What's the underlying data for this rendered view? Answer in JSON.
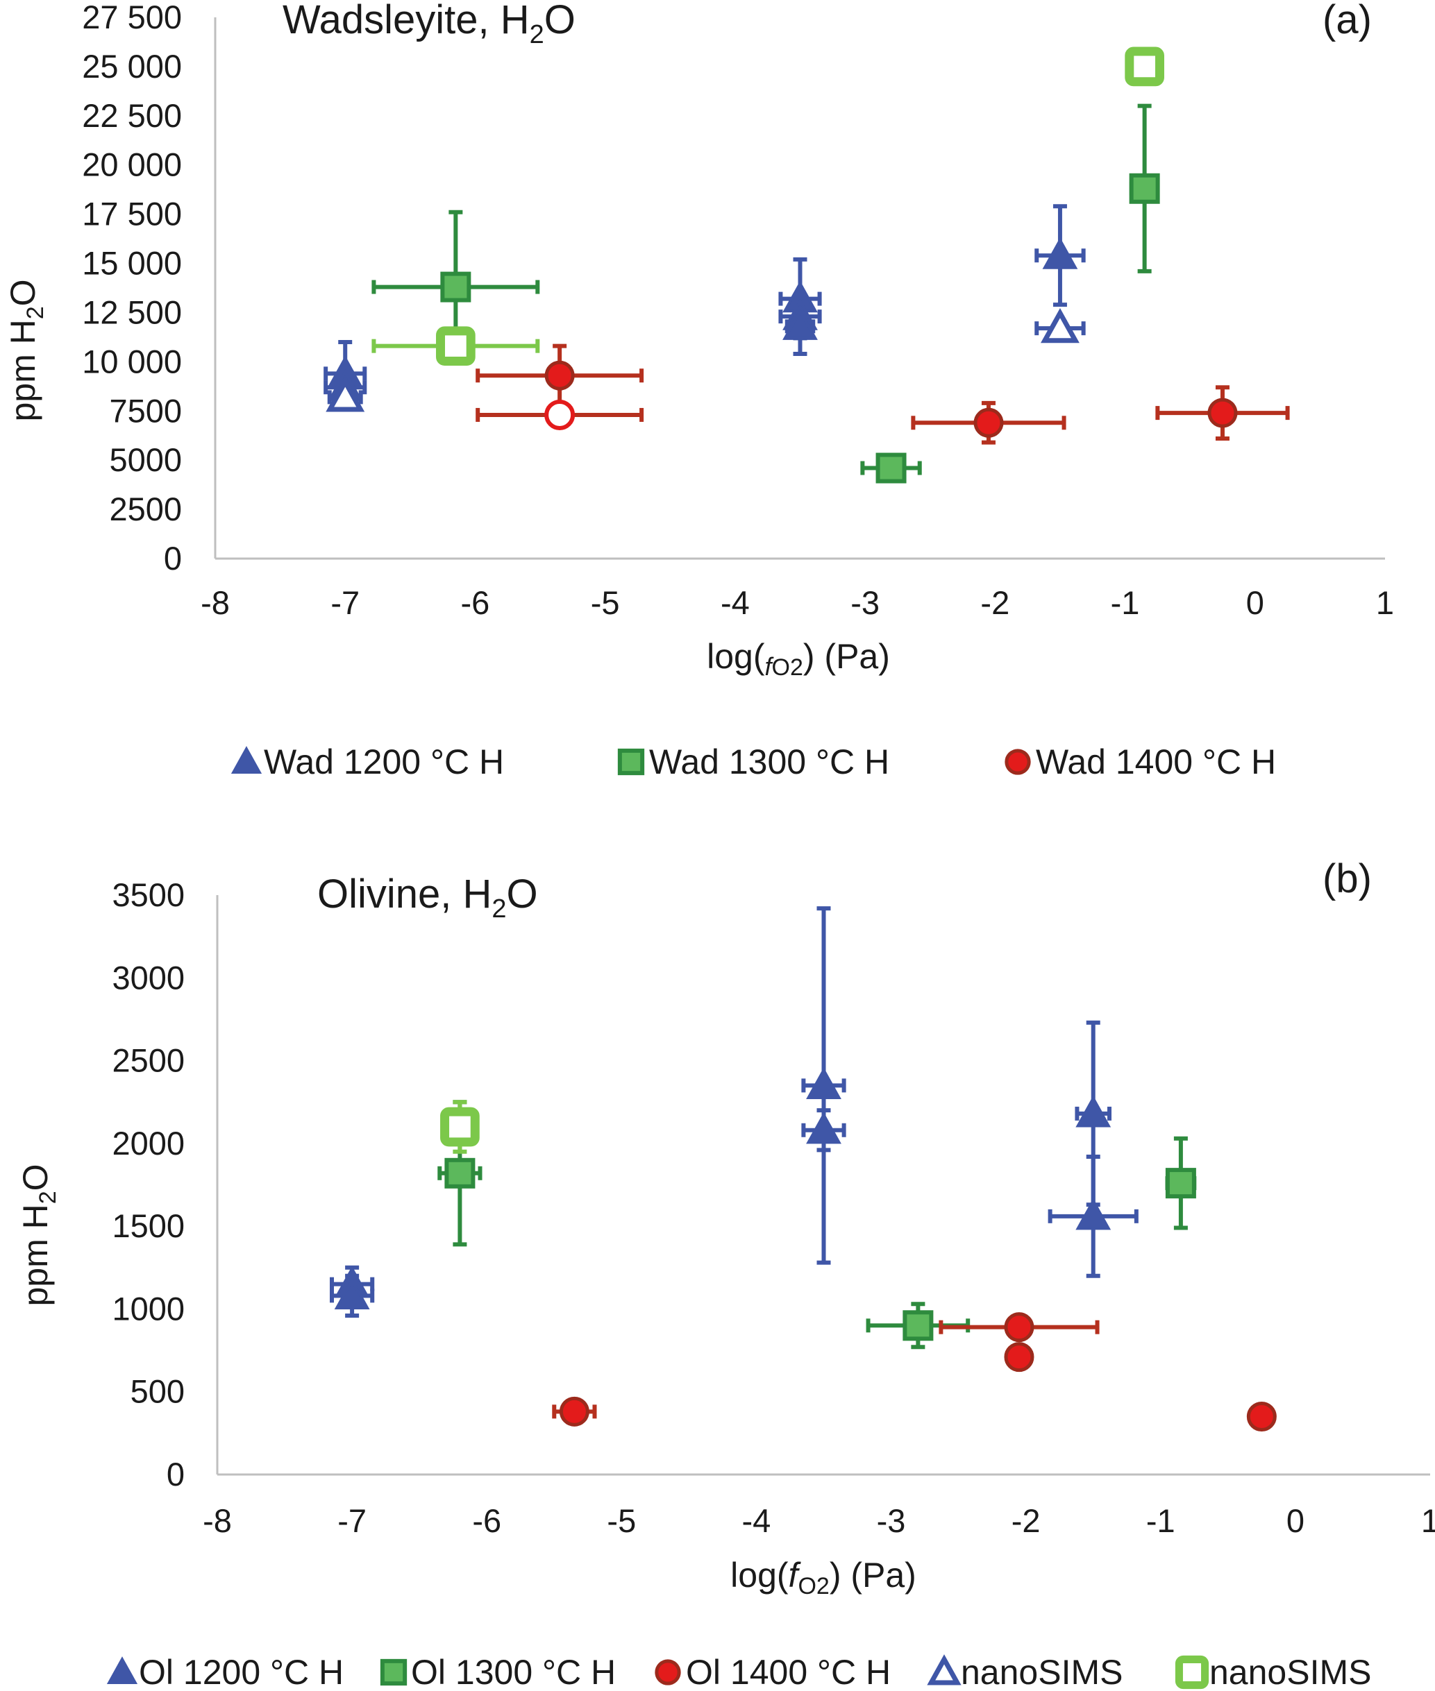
{
  "colors": {
    "blue": "#3f56a7",
    "green_dark": "#2e8b3e",
    "green_fill": "#5cb85c",
    "green_light": "#7cc84a",
    "red": "#e31b1b",
    "red_edge": "#9c2a1c",
    "red_line": "#b5301e",
    "axis": "#bfbfbf",
    "text": "#1a1a1a"
  },
  "chart_data": [
    {
      "type": "scatter",
      "panel_label": "(a)",
      "title_main": "Wadsleyite, H",
      "title_sub": "2",
      "title_end": "O",
      "ylabel_main": "ppm H",
      "ylabel_sub": "2",
      "ylabel_end": "O",
      "xlabel_pre": "log(",
      "xlabel_f": "f",
      "xlabel_sub": "O2",
      "xlabel_post": ") (Pa)",
      "xlim": [
        -8,
        1
      ],
      "ylim": [
        0,
        27500
      ],
      "x_ticks": [
        "-8",
        "-7",
        "-6",
        "-5",
        "-4",
        "-3",
        "-2",
        "-1",
        "0",
        "1"
      ],
      "y_ticks": [
        "0",
        "2500",
        "5000",
        "7500",
        "10 000",
        "12 500",
        "15 000",
        "17 500",
        "20 000",
        "22 500",
        "25 000",
        "27 500"
      ],
      "legend": [
        {
          "marker": "triangle",
          "label": "Wad 1200 °C H"
        },
        {
          "marker": "square",
          "label": "Wad 1300 °C H"
        },
        {
          "marker": "circle",
          "label": "Wad 1400 °C H"
        }
      ],
      "series": [
        {
          "name": "Wad 1200 °C H",
          "marker": "triangle",
          "filled": true,
          "points": [
            {
              "x": -7.0,
              "y": 9400,
              "xerr": 0.15,
              "yerr": 1600
            },
            {
              "x": -7.0,
              "y": 8700,
              "xerr": 0.15,
              "yerr": 500
            },
            {
              "x": -3.5,
              "y": 13200,
              "xerr": 0.15,
              "yerr": 2000
            },
            {
              "x": -3.5,
              "y": 12300,
              "xerr": 0.15,
              "yerr": 700
            },
            {
              "x": -3.5,
              "y": 11800,
              "xerr": 0.1,
              "yerr": 1400
            },
            {
              "x": -1.5,
              "y": 15400,
              "xerr": 0.18,
              "yerr": 2500
            }
          ]
        },
        {
          "name": "Wad 1200 °C H nanoSIMS",
          "marker": "triangle",
          "filled": false,
          "points": [
            {
              "x": -7.0,
              "y": 8200,
              "xerr": 0.12,
              "yerr": 300
            },
            {
              "x": -1.5,
              "y": 11700,
              "xerr": 0.18,
              "yerr": 300
            }
          ]
        },
        {
          "name": "Wad 1300 °C H",
          "marker": "square",
          "filled": true,
          "points": [
            {
              "x": -6.15,
              "y": 13800,
              "xerr": 0.63,
              "yerr": 3800
            },
            {
              "x": -2.8,
              "y": 4600,
              "xerr": 0.22,
              "yerr": 400
            },
            {
              "x": -0.85,
              "y": 18800,
              "xerr": 0.1,
              "yerr": 4200
            }
          ]
        },
        {
          "name": "Wad 1300 °C H nanoSIMS",
          "marker": "square",
          "filled": false,
          "points": [
            {
              "x": -6.15,
              "y": 10800,
              "xerr": 0.63,
              "yerr": 0
            },
            {
              "x": -0.85,
              "y": 25000,
              "xerr": 0,
              "yerr": 0
            }
          ]
        },
        {
          "name": "Wad 1400 °C H",
          "marker": "circle",
          "filled": true,
          "points": [
            {
              "x": -5.35,
              "y": 9300,
              "xerr": 0.63,
              "yerr": 1500
            },
            {
              "x": -2.05,
              "y": 6900,
              "xerr": 0.58,
              "yerr": 1000
            },
            {
              "x": -0.25,
              "y": 7400,
              "xerr": 0.5,
              "yerr": 1300
            }
          ]
        },
        {
          "name": "Wad 1400 °C H nanoSIMS",
          "marker": "circle",
          "filled": false,
          "points": [
            {
              "x": -5.35,
              "y": 7300,
              "xerr": 0.63,
              "yerr": 0
            }
          ]
        }
      ]
    },
    {
      "type": "scatter",
      "panel_label": "(b)",
      "title_main": "Olivine, H",
      "title_sub": "2",
      "title_end": "O",
      "ylabel_main": "ppm H",
      "ylabel_sub": "2",
      "ylabel_end": "O",
      "xlabel_pre": "log(",
      "xlabel_f": "f",
      "xlabel_sub": "O2",
      "xlabel_post": ") (Pa)",
      "xlim": [
        -8,
        1
      ],
      "ylim": [
        0,
        3500
      ],
      "x_ticks": [
        "-8",
        "-7",
        "-6",
        "-5",
        "-4",
        "-3",
        "-2",
        "-1",
        "0",
        "1"
      ],
      "y_ticks": [
        "0",
        "500",
        "1000",
        "1500",
        "2000",
        "2500",
        "3000",
        "3500"
      ],
      "legend": [
        {
          "marker": "triangle",
          "filled": true,
          "label": "Ol 1200 °C H"
        },
        {
          "marker": "square",
          "filled": true,
          "label": "Ol 1300 °C H"
        },
        {
          "marker": "circle",
          "filled": true,
          "label": "Ol 1400 °C H"
        },
        {
          "marker": "triangle",
          "filled": false,
          "label": "nanoSIMS"
        },
        {
          "marker": "square",
          "filled": false,
          "label": "nanoSIMS"
        }
      ],
      "series": [
        {
          "name": "Ol 1200 °C H",
          "marker": "triangle",
          "filled": true,
          "points": [
            {
              "x": -7.0,
              "y": 1150,
              "xerr": 0.15,
              "yerr": 100
            },
            {
              "x": -7.0,
              "y": 1080,
              "xerr": 0.15,
              "yerr": 120
            },
            {
              "x": -3.5,
              "y": 2350,
              "xerr": 0.15,
              "yerr": 1070
            },
            {
              "x": -3.5,
              "y": 2080,
              "xerr": 0.15,
              "yerr": 120
            },
            {
              "x": -1.5,
              "y": 2180,
              "xerr": 0.12,
              "yerr": 550
            },
            {
              "x": -1.5,
              "y": 1560,
              "xerr": 0.32,
              "yerr": 360
            }
          ]
        },
        {
          "name": "Ol 1300 °C H",
          "marker": "square",
          "filled": true,
          "points": [
            {
              "x": -6.2,
              "y": 1820,
              "xerr": 0.15,
              "yerr": 430
            },
            {
              "x": -2.8,
              "y": 900,
              "xerr": 0.37,
              "yerr": 130
            },
            {
              "x": -0.85,
              "y": 1760,
              "xerr": 0.1,
              "yerr": 270
            }
          ]
        },
        {
          "name": "Ol 1300 °C H nanoSIMS",
          "marker": "square",
          "filled": false,
          "points": [
            {
              "x": -6.2,
              "y": 2100,
              "xerr": 0.1,
              "yerr": 150
            }
          ]
        },
        {
          "name": "Ol 1400 °C H",
          "marker": "circle",
          "filled": true,
          "points": [
            {
              "x": -5.35,
              "y": 380,
              "xerr": 0.15,
              "yerr": 0
            },
            {
              "x": -2.05,
              "y": 890,
              "xerr": 0.58,
              "yerr": 0
            },
            {
              "x": -2.05,
              "y": 710,
              "xerr": 0,
              "yerr": 0
            },
            {
              "x": -0.25,
              "y": 350,
              "xerr": 0,
              "yerr": 0
            }
          ]
        }
      ]
    }
  ]
}
